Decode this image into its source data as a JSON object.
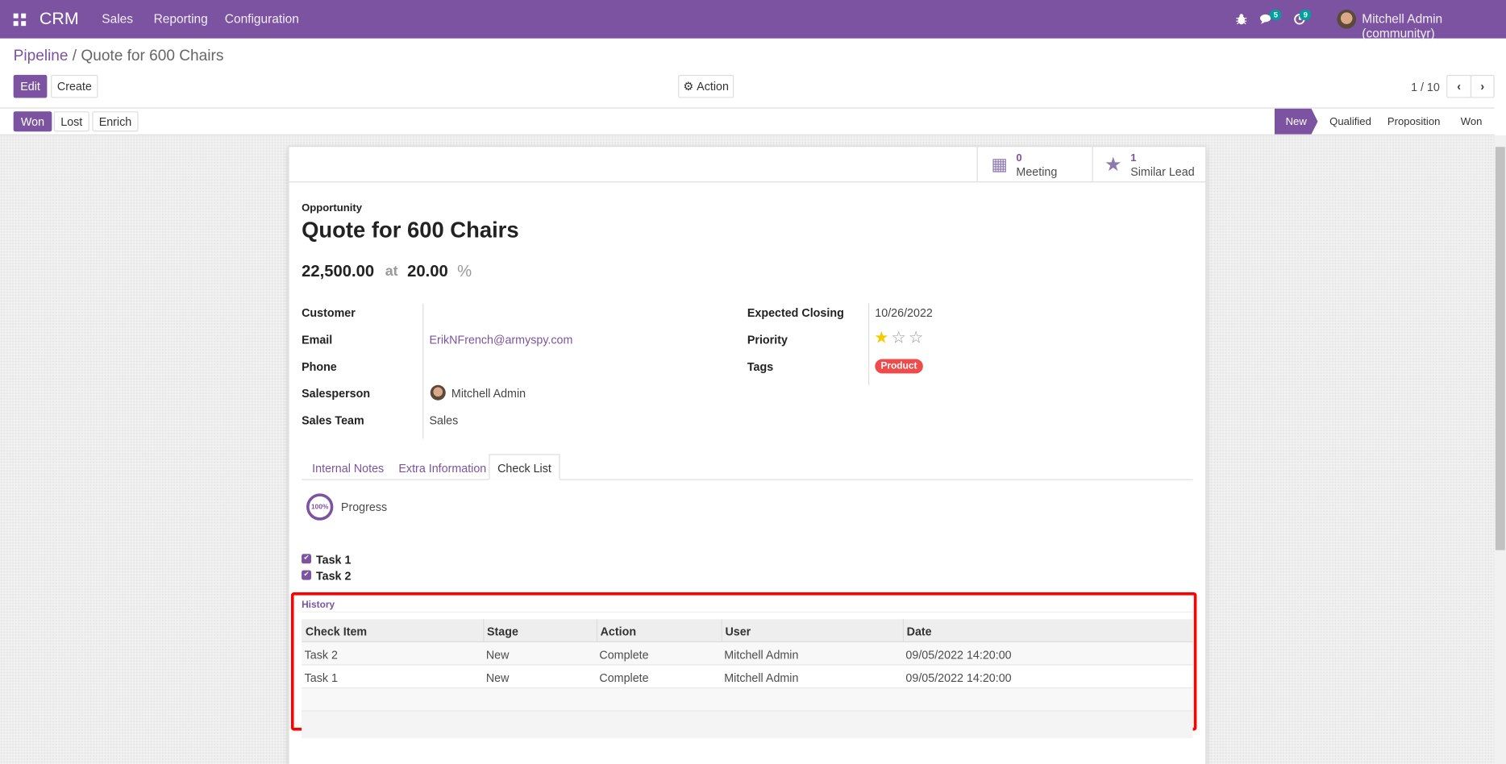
{
  "navbar": {
    "app": "CRM",
    "menus": [
      "Sales",
      "Reporting",
      "Configuration"
    ],
    "messages_count": "5",
    "activities_count": "9",
    "user": "Mitchell Admin (communityr)",
    "color": "#7c53a0"
  },
  "breadcrumb": {
    "parent": "Pipeline",
    "current": "Quote for 600 Chairs"
  },
  "toolbar": {
    "edit": "Edit",
    "create": "Create",
    "action": "Action",
    "pager": "1 / 10"
  },
  "statusbar": {
    "buttons": [
      "Won",
      "Lost",
      "Enrich"
    ],
    "stages": [
      "New",
      "Qualified",
      "Proposition",
      "Won"
    ],
    "active_stage": "New"
  },
  "smart_buttons": [
    {
      "count": "0",
      "label": "Meeting",
      "icon": "calendar-icon"
    },
    {
      "count": "1",
      "label": "Similar Lead",
      "icon": "star-icon"
    }
  ],
  "form": {
    "type": "Opportunity",
    "title": "Quote for 600 Chairs",
    "revenue": "22,500.00",
    "at": "at",
    "probability": "20.00",
    "pct": "%",
    "left": [
      {
        "label": "Customer",
        "value": ""
      },
      {
        "label": "Email",
        "value": "ErikNFrench@armyspy.com"
      },
      {
        "label": "Phone",
        "value": ""
      },
      {
        "label": "Salesperson",
        "value": "Mitchell Admin"
      },
      {
        "label": "Sales Team",
        "value": "Sales"
      }
    ],
    "right": [
      {
        "label": "Expected Closing",
        "value": "10/26/2022"
      },
      {
        "label": "Priority",
        "value": "",
        "stars": 1,
        "max_stars": 3
      },
      {
        "label": "Tags",
        "value": "Product"
      }
    ]
  },
  "tabs": [
    "Internal Notes",
    "Extra Information",
    "Check List"
  ],
  "active_tab": "Check List",
  "checklist": {
    "progress": "100%",
    "progress_label": "Progress",
    "tasks": [
      "Task 1",
      "Task 2"
    ]
  },
  "history": {
    "title": "History",
    "columns": [
      "Check Item",
      "Stage",
      "Action",
      "User",
      "Date"
    ],
    "rows": [
      [
        "Task 2",
        "New",
        "Complete",
        "Mitchell Admin",
        "09/05/2022 14:20:00"
      ],
      [
        "Task 1",
        "New",
        "Complete",
        "Mitchell Admin",
        "09/05/2022 14:20:00"
      ]
    ]
  }
}
